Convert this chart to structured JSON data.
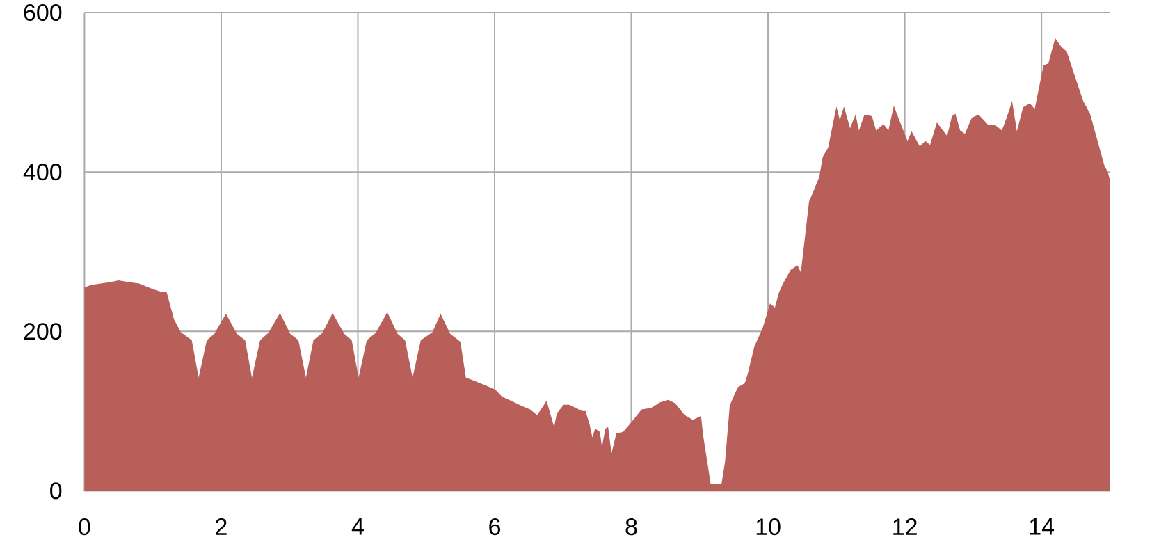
{
  "chart_data": {
    "type": "area",
    "color": "#b85f59",
    "xlim": [
      0,
      15
    ],
    "ylim": [
      0,
      600
    ],
    "xticks": [
      0,
      2,
      4,
      6,
      8,
      10,
      12,
      14
    ],
    "yticks": [
      0,
      200,
      400,
      600
    ],
    "grid": true,
    "x": [
      0,
      0.09,
      0.39,
      0.5,
      0.63,
      0.8,
      1.0,
      1.11,
      1.2,
      1.31,
      1.41,
      1.57,
      1.67,
      1.79,
      1.9,
      2.07,
      2.23,
      2.35,
      2.45,
      2.57,
      2.69,
      2.86,
      3.01,
      3.13,
      3.24,
      3.35,
      3.48,
      3.63,
      3.8,
      3.91,
      4.01,
      4.13,
      4.26,
      4.43,
      4.58,
      4.69,
      4.8,
      4.92,
      5.09,
      5.21,
      5.35,
      5.5,
      5.58,
      5.7,
      5.9,
      6.01,
      6.11,
      6.24,
      6.41,
      6.52,
      6.62,
      6.67,
      6.76,
      6.82,
      6.87,
      6.91,
      7.01,
      7.09,
      7.28,
      7.33,
      7.39,
      7.43,
      7.47,
      7.54,
      7.57,
      7.62,
      7.66,
      7.71,
      7.78,
      7.88,
      8.01,
      8.15,
      8.29,
      8.42,
      8.54,
      8.64,
      8.78,
      8.9,
      9.02,
      9.05,
      9.16,
      9.32,
      9.37,
      9.44,
      9.51,
      9.56,
      9.66,
      9.7,
      9.8,
      9.92,
      10.03,
      10.1,
      10.16,
      10.22,
      10.33,
      10.43,
      10.48,
      10.6,
      10.67,
      10.75,
      10.8,
      10.88,
      11.0,
      11.05,
      11.11,
      11.2,
      11.28,
      11.33,
      11.41,
      11.52,
      11.58,
      11.69,
      11.76,
      11.84,
      11.92,
      12.04,
      12.1,
      12.22,
      12.3,
      12.37,
      12.47,
      12.62,
      12.69,
      12.74,
      12.81,
      12.88,
      12.98,
      13.08,
      13.22,
      13.32,
      13.42,
      13.49,
      13.57,
      13.64,
      13.73,
      13.83,
      13.9,
      14.03,
      14.1,
      14.2,
      14.29,
      14.37,
      14.48,
      14.61,
      14.71,
      14.82,
      14.92,
      14.97,
      15
    ],
    "values": [
      255,
      258,
      262,
      264,
      262,
      260,
      253,
      250,
      250,
      215,
      199,
      189,
      142,
      189,
      197,
      222,
      197,
      189,
      142,
      189,
      198,
      223,
      197,
      189,
      142,
      189,
      198,
      223,
      197,
      189,
      142,
      189,
      198,
      224,
      197,
      189,
      142,
      189,
      199,
      222,
      197,
      187,
      142,
      138,
      131,
      127,
      118,
      113,
      106,
      102,
      95,
      101,
      113,
      95,
      80,
      97,
      108,
      108,
      100,
      100,
      83,
      67,
      78,
      74,
      55,
      78,
      80,
      47,
      72,
      74,
      87,
      102,
      104,
      111,
      114,
      110,
      95,
      89,
      94,
      70,
      9,
      9,
      36,
      107,
      121,
      130,
      135,
      146,
      181,
      204,
      235,
      230,
      249,
      260,
      277,
      283,
      274,
      363,
      377,
      394,
      419,
      431,
      482,
      465,
      482,
      455,
      472,
      452,
      472,
      470,
      452,
      460,
      452,
      483,
      465,
      439,
      451,
      432,
      439,
      434,
      462,
      445,
      470,
      473,
      452,
      448,
      468,
      472,
      459,
      459,
      452,
      468,
      489,
      451,
      481,
      486,
      479,
      534,
      536,
      568,
      557,
      551,
      522,
      489,
      473,
      439,
      408,
      400,
      390
    ]
  }
}
